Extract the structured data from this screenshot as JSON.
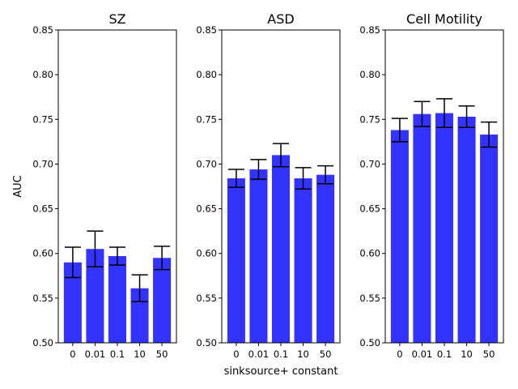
{
  "chart_data": [
    {
      "type": "bar",
      "title": "SZ",
      "ylabel": "AUC",
      "xlabel": "",
      "categories": [
        "0",
        "0.01",
        "0.1",
        "10",
        "50"
      ],
      "values": [
        0.59,
        0.605,
        0.597,
        0.561,
        0.595
      ],
      "errors": [
        0.017,
        0.02,
        0.01,
        0.015,
        0.013
      ],
      "ylim": [
        0.5,
        0.85
      ],
      "yticks": [
        "0.50",
        "0.55",
        "0.60",
        "0.65",
        "0.70",
        "0.75",
        "0.80",
        "0.85"
      ],
      "bar_color": "#3333ff",
      "error_color": "#000000",
      "grid": false
    },
    {
      "type": "bar",
      "title": "ASD",
      "ylabel": "",
      "xlabel": "sinksource+ constant",
      "categories": [
        "0",
        "0.01",
        "0.1",
        "10",
        "50"
      ],
      "values": [
        0.684,
        0.694,
        0.71,
        0.684,
        0.688
      ],
      "errors": [
        0.01,
        0.011,
        0.013,
        0.012,
        0.01
      ],
      "ylim": [
        0.5,
        0.85
      ],
      "yticks": [
        "0.50",
        "0.55",
        "0.60",
        "0.65",
        "0.70",
        "0.75",
        "0.80",
        "0.85"
      ],
      "bar_color": "#3333ff",
      "error_color": "#000000",
      "grid": false
    },
    {
      "type": "bar",
      "title": "Cell Motility",
      "ylabel": "",
      "xlabel": "",
      "categories": [
        "0",
        "0.01",
        "0.1",
        "10",
        "50"
      ],
      "values": [
        0.738,
        0.756,
        0.757,
        0.753,
        0.733
      ],
      "errors": [
        0.013,
        0.014,
        0.016,
        0.012,
        0.014
      ],
      "ylim": [
        0.5,
        0.85
      ],
      "yticks": [
        "0.50",
        "0.55",
        "0.60",
        "0.65",
        "0.70",
        "0.75",
        "0.80",
        "0.85"
      ],
      "bar_color": "#3333ff",
      "error_color": "#000000",
      "grid": false
    }
  ]
}
